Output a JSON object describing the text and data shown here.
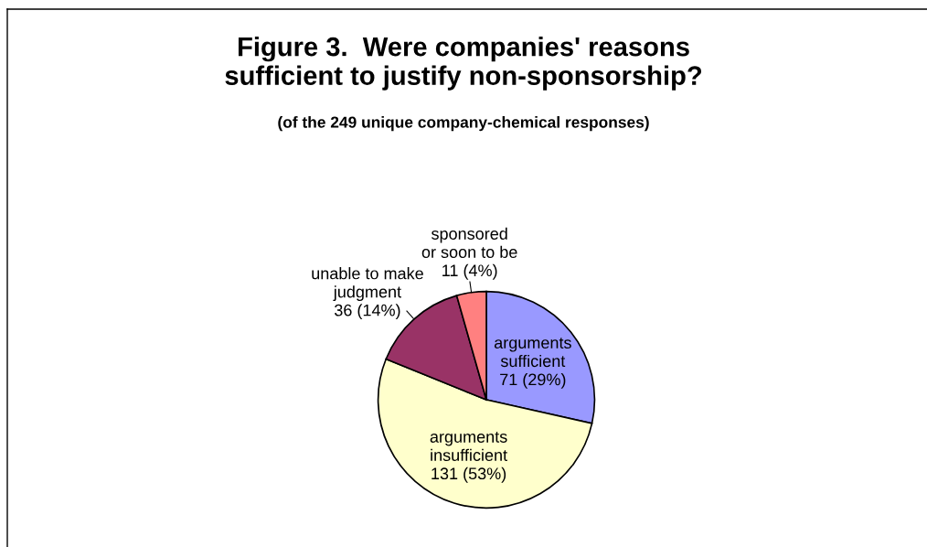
{
  "chart_data": {
    "type": "pie",
    "title": "Figure 3.  Were companies' reasons\nsufficient to justify non-sponsorship?",
    "subtitle": "(of the 249 unique company-chemical responses)",
    "categories": [
      "arguments\nsufficient",
      "arguments\ninsufficient",
      "unable to make\njudgment",
      "sponsored\nor soon to be"
    ],
    "values": [
      71,
      131,
      36,
      11
    ],
    "value_labels": [
      "71 (29%)",
      "131 (53%)",
      "36 (14%)",
      "11 (4%)"
    ],
    "colors": [
      "#9999ff",
      "#ffffcc",
      "#993366",
      "#ff8080"
    ],
    "legend": false
  }
}
